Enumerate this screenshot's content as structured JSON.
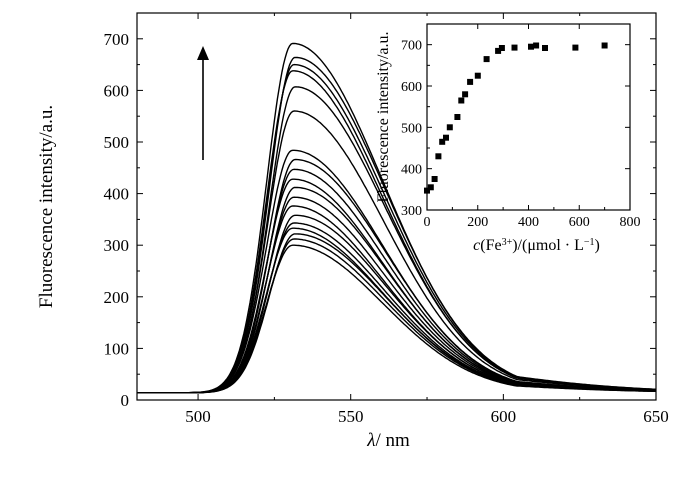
{
  "chart_data": [
    {
      "type": "line",
      "title": "",
      "xlabel": "λ / nm",
      "xlabel_symbol": "λ",
      "xlabel_unit": "nm",
      "ylabel": "Fluorescence intensity/a.u.",
      "xlim": [
        480,
        650
      ],
      "ylim": [
        0,
        750
      ],
      "xticks": [
        500,
        550,
        600,
        650
      ],
      "yticks": [
        0,
        100,
        200,
        300,
        400,
        500,
        600,
        700
      ],
      "grid": false,
      "legend": "none",
      "annotation": "upward arrow indicating increasing intensity",
      "curve_shape": {
        "peak_wavelength": 531,
        "baseline": 14,
        "rise_halfwidth_nm": 8.5,
        "tail_halfwidth_nm": 28
      },
      "series_peaks": [
        300,
        312,
        322,
        333,
        343,
        358,
        376,
        393,
        412,
        428,
        447,
        466,
        484,
        560,
        607,
        638,
        650,
        664,
        691
      ]
    },
    {
      "type": "scatter",
      "title": "",
      "position": "inset top-right",
      "xlabel": "c(Fe3+)/(μmol · L−1)",
      "xlabel_parts": {
        "c": "c",
        "pre": "(Fe",
        "sup1": "3+",
        "mid": ")/(μmol · L",
        "sup2": "−1",
        "post": ")"
      },
      "ylabel": "Fluorescence intensity/a.u.",
      "xlim": [
        0,
        800
      ],
      "ylim": [
        300,
        750
      ],
      "xticks": [
        0,
        200,
        400,
        600,
        800
      ],
      "yticks": [
        300,
        400,
        500,
        600,
        700
      ],
      "grid": false,
      "x": [
        0,
        15,
        30,
        45,
        60,
        75,
        90,
        120,
        135,
        150,
        170,
        200,
        235,
        280,
        295,
        345,
        410,
        430,
        465,
        585,
        700
      ],
      "y": [
        347,
        355,
        375,
        430,
        465,
        475,
        500,
        525,
        565,
        580,
        610,
        625,
        665,
        685,
        692,
        693,
        695,
        698,
        692,
        693,
        698
      ]
    }
  ]
}
